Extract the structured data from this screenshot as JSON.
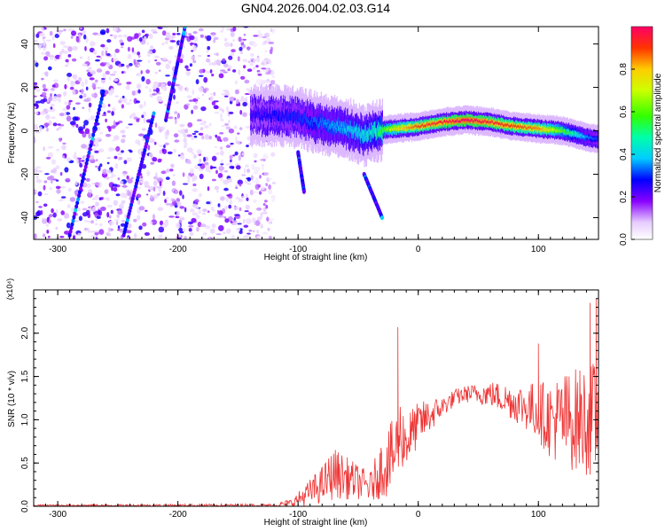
{
  "figure_title": "GN04.2026.004.02.03.G14",
  "chart_data": [
    {
      "type": "heatmap",
      "title": "GN04.2026.004.02.03.G14",
      "xlabel": "Height of straight line (km)",
      "ylabel": "Frequency (Hz)",
      "xlim": [
        -320,
        150
      ],
      "ylim": [
        -50,
        48
      ],
      "xticks": [
        -300,
        -200,
        -100,
        0,
        100
      ],
      "xtick_labels": [
        "-300",
        "-200",
        "-100",
        "0",
        "100"
      ],
      "yticks": [
        -40,
        -20,
        0,
        20,
        40
      ],
      "ytick_labels": [
        "-40",
        "-20",
        "0",
        "20",
        "40"
      ],
      "colorbar": {
        "label": "Normalized spectral amplitude",
        "range": [
          0,
          1
        ],
        "ticks": [
          0,
          0.2,
          0.4,
          0.6,
          0.8
        ],
        "tick_labels": [
          "0.0",
          "0.2",
          "0.4",
          "0.6",
          "0.8"
        ]
      },
      "noise_region_x": [
        -320,
        -120
      ],
      "signal_ridge": {
        "x": [
          -140,
          -120,
          -100,
          -80,
          -60,
          -45,
          -35,
          -20,
          0,
          20,
          40,
          60,
          80,
          100,
          120,
          140,
          150
        ],
        "freq_hz": [
          7,
          7,
          6,
          3,
          1,
          -2,
          0,
          1,
          2,
          4,
          5,
          4,
          2,
          1,
          0,
          -3,
          -4
        ],
        "peak_amplitude": [
          0.25,
          0.28,
          0.3,
          0.35,
          0.4,
          0.45,
          0.5,
          0.75,
          0.9,
          0.95,
          1.0,
          0.95,
          0.9,
          0.85,
          0.6,
          0.35,
          0.3
        ]
      },
      "diagonal_streaks": [
        {
          "x": [
            -290,
            -262
          ],
          "freq_hz": [
            -48,
            18
          ]
        },
        {
          "x": [
            -245,
            -220
          ],
          "freq_hz": [
            -48,
            8
          ]
        },
        {
          "x": [
            -210,
            -194
          ],
          "freq_hz": [
            5,
            48
          ]
        },
        {
          "x": [
            -100,
            -95
          ],
          "freq_hz": [
            -10,
            -28
          ]
        },
        {
          "x": [
            -45,
            -30
          ],
          "freq_hz": [
            -20,
            -40
          ]
        }
      ]
    },
    {
      "type": "line",
      "title": "",
      "xlabel": "Height of straight line (km)",
      "ylabel": "SNR (10 * v/v)",
      "scale_label": "(x10⁴)",
      "xlim": [
        -320,
        150
      ],
      "ylim": [
        0,
        2.5
      ],
      "xticks": [
        -300,
        -200,
        -100,
        0,
        100
      ],
      "xtick_labels": [
        "-300",
        "-200",
        "-100",
        "0",
        "100"
      ],
      "yticks": [
        0,
        0.5,
        1.0,
        1.5,
        2.0
      ],
      "ytick_labels": [
        "0.0",
        "0.5",
        "1.0",
        "1.5",
        "2.0"
      ],
      "series": [
        {
          "name": "SNR",
          "color": "#ee3333",
          "envelope": {
            "x": [
              -320,
              -200,
              -120,
              -105,
              -95,
              -80,
              -70,
              -60,
              -50,
              -40,
              -30,
              -25,
              -20,
              -15,
              -10,
              0,
              10,
              20,
              30,
              40,
              50,
              60,
              70,
              80,
              90,
              100,
              110,
              120,
              130,
              140,
              150
            ],
            "mean": [
              0.01,
              0.01,
              0.01,
              0.04,
              0.12,
              0.25,
              0.38,
              0.33,
              0.28,
              0.22,
              0.45,
              0.5,
              0.6,
              0.85,
              0.75,
              0.95,
              1.05,
              1.15,
              1.25,
              1.3,
              1.3,
              1.3,
              1.25,
              1.2,
              1.15,
              1.1,
              1.0,
              1.0,
              1.0,
              1.0,
              1.0
            ],
            "spread": [
              0.01,
              0.015,
              0.02,
              0.05,
              0.12,
              0.22,
              0.3,
              0.25,
              0.2,
              0.18,
              0.35,
              0.4,
              0.45,
              0.4,
              0.35,
              0.25,
              0.2,
              0.12,
              0.1,
              0.1,
              0.12,
              0.15,
              0.18,
              0.22,
              0.28,
              0.35,
              0.45,
              0.55,
              0.6,
              0.65,
              0.7
            ]
          },
          "spikes": [
            {
              "x": -17,
              "value": 2.07
            },
            {
              "x": 100,
              "value": 1.88
            },
            {
              "x": 143,
              "value": 2.35
            },
            {
              "x": 148,
              "value": 2.4
            }
          ]
        }
      ]
    }
  ]
}
